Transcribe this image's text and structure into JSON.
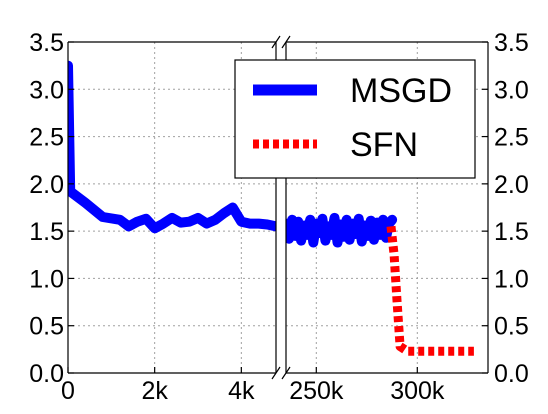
{
  "chart_data": {
    "type": "line",
    "broken_x_axis": true,
    "ylim": [
      0.0,
      3.5
    ],
    "yticks": [
      "0.0",
      "0.5",
      "1.0",
      "1.5",
      "2.0",
      "2.5",
      "3.0",
      "3.5"
    ],
    "grid": true,
    "legend_position": "top-right",
    "panels": [
      {
        "xlim": [
          0,
          4800
        ],
        "xticks": [
          {
            "value": 0,
            "label": "0"
          },
          {
            "value": 2000,
            "label": "2k"
          },
          {
            "value": 4000,
            "label": "4k"
          }
        ],
        "series": [
          {
            "name": "MSGD",
            "color": "#0000ff",
            "style": "solid",
            "x": [
              0,
              50,
              400,
              800,
              1200,
              1400,
              1600,
              1800,
              2000,
              2200,
              2400,
              2600,
              2800,
              3000,
              3200,
              3400,
              3600,
              3800,
              4000,
              4200,
              4400,
              4600,
              4800
            ],
            "y": [
              3.25,
              1.92,
              1.8,
              1.65,
              1.62,
              1.55,
              1.6,
              1.63,
              1.53,
              1.58,
              1.64,
              1.59,
              1.6,
              1.64,
              1.58,
              1.62,
              1.69,
              1.75,
              1.6,
              1.58,
              1.58,
              1.57,
              1.55
            ]
          }
        ]
      },
      {
        "xlim": [
          235000,
          335000
        ],
        "xticks": [
          {
            "value": 250000,
            "label": "250k"
          },
          {
            "value": 300000,
            "label": "300k"
          }
        ],
        "series": [
          {
            "name": "MSGD",
            "color": "#0000ff",
            "style": "solid",
            "x": [
              235000,
              236500,
              238000,
              239500,
              241000,
              242500,
              244000,
              245500,
              247000,
              248500,
              250000,
              251500,
              253000,
              254500,
              256000,
              257500,
              259000,
              260500,
              262000,
              263500,
              265000,
              266500,
              268000,
              269500,
              271000,
              272500,
              274000,
              275500,
              277000,
              278500,
              280000,
              281500,
              283000,
              284500,
              286000,
              287500
            ],
            "y": [
              1.58,
              1.42,
              1.62,
              1.45,
              1.6,
              1.4,
              1.56,
              1.46,
              1.62,
              1.38,
              1.58,
              1.48,
              1.63,
              1.4,
              1.55,
              1.46,
              1.64,
              1.38,
              1.57,
              1.44,
              1.62,
              1.41,
              1.58,
              1.47,
              1.63,
              1.39,
              1.56,
              1.45,
              1.61,
              1.41,
              1.59,
              1.46,
              1.62,
              1.43,
              1.58,
              1.62
            ]
          },
          {
            "name": "SFN",
            "color": "#ff0000",
            "style": "dotted",
            "x": [
              287000,
              288500,
              290000,
              291500,
              295000,
              300000,
              310000,
              320000,
              328000
            ],
            "y": [
              1.55,
              1.25,
              0.75,
              0.28,
              0.23,
              0.23,
              0.23,
              0.23,
              0.23
            ]
          }
        ]
      }
    ],
    "legend": [
      {
        "label": "MSGD",
        "color": "#0000ff",
        "style": "solid"
      },
      {
        "label": "SFN",
        "color": "#ff0000",
        "style": "dotted"
      }
    ]
  }
}
